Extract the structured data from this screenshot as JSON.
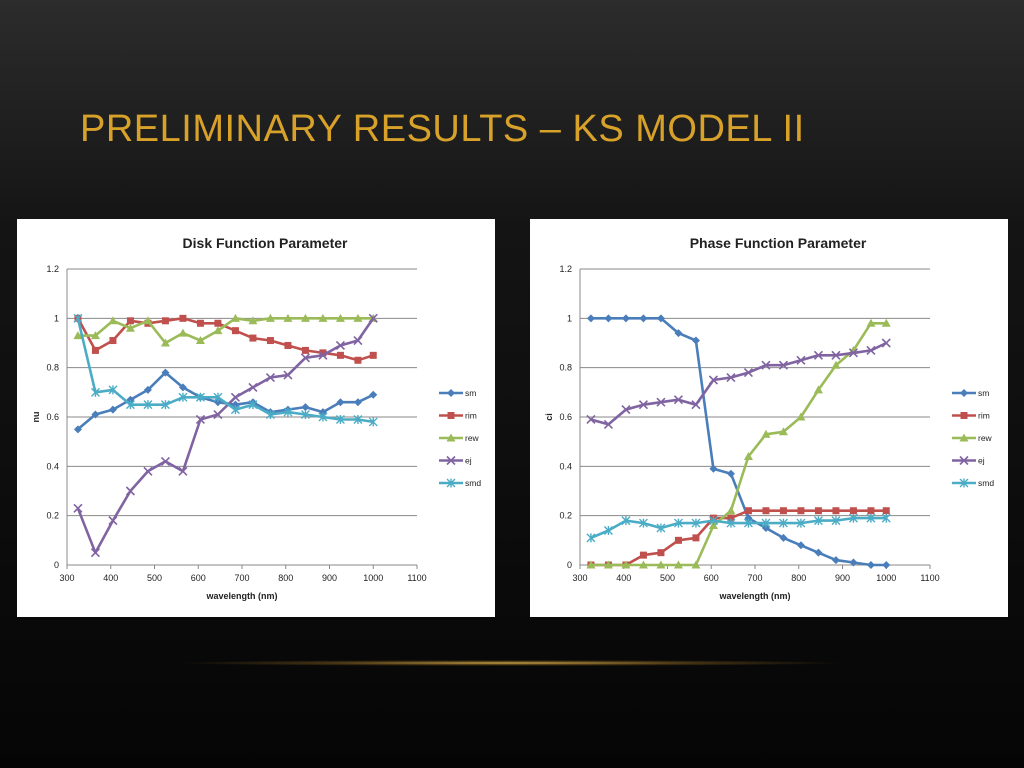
{
  "slide": {
    "title": "PRELIMINARY RESULTS – KS MODEL II"
  },
  "chart_data": [
    {
      "type": "line",
      "title": "Disk Function Parameter",
      "xlabel": "wavelength (nm)",
      "ylabel": "nu",
      "xlim": [
        300,
        1100
      ],
      "ylim": [
        0,
        1.2
      ],
      "xticks": [
        300,
        400,
        500,
        600,
        700,
        800,
        900,
        1000,
        1100
      ],
      "yticks": [
        0,
        0.2,
        0.4,
        0.6,
        0.8,
        1,
        1.2
      ],
      "grid": "horizontal",
      "legend": "right",
      "x": [
        325,
        365,
        405,
        445,
        485,
        525,
        565,
        605,
        645,
        685,
        725,
        765,
        805,
        845,
        885,
        925,
        965,
        1000
      ],
      "series": [
        {
          "name": "sm",
          "color": "#4a7ebb",
          "marker": "diamond",
          "values": [
            0.55,
            0.61,
            0.63,
            0.67,
            0.71,
            0.78,
            0.72,
            0.68,
            0.66,
            0.65,
            0.66,
            0.62,
            0.63,
            0.64,
            0.62,
            0.66,
            0.66,
            0.69
          ]
        },
        {
          "name": "rim",
          "color": "#c0504d",
          "marker": "square",
          "values": [
            1.0,
            0.87,
            0.91,
            0.99,
            0.98,
            0.99,
            1.0,
            0.98,
            0.98,
            0.95,
            0.92,
            0.91,
            0.89,
            0.87,
            0.86,
            0.85,
            0.83,
            0.85
          ]
        },
        {
          "name": "rew",
          "color": "#9bbb59",
          "marker": "triangle",
          "values": [
            0.93,
            0.93,
            0.99,
            0.96,
            0.99,
            0.9,
            0.94,
            0.91,
            0.95,
            1.0,
            0.99,
            1.0,
            1.0,
            1.0,
            1.0,
            1.0,
            1.0,
            1.0
          ]
        },
        {
          "name": "ej",
          "color": "#8064a2",
          "marker": "x",
          "values": [
            0.23,
            0.05,
            0.18,
            0.3,
            0.38,
            0.42,
            0.38,
            0.59,
            0.61,
            0.68,
            0.72,
            0.76,
            0.77,
            0.84,
            0.85,
            0.89,
            0.91,
            1.0
          ]
        },
        {
          "name": "smd",
          "color": "#4bacc6",
          "marker": "star",
          "values": [
            1.0,
            0.7,
            0.71,
            0.65,
            0.65,
            0.65,
            0.68,
            0.68,
            0.68,
            0.63,
            0.65,
            0.61,
            0.62,
            0.61,
            0.6,
            0.59,
            0.59,
            0.58
          ]
        }
      ]
    },
    {
      "type": "line",
      "title": "Phase Function Parameter",
      "xlabel": "wavelength (nm)",
      "ylabel": "ci",
      "xlim": [
        300,
        1100
      ],
      "ylim": [
        0,
        1.2
      ],
      "xticks": [
        300,
        400,
        500,
        600,
        700,
        800,
        900,
        1000,
        1100
      ],
      "yticks": [
        0,
        0.2,
        0.4,
        0.6,
        0.8,
        1,
        1.2
      ],
      "grid": "horizontal",
      "legend": "right",
      "x": [
        325,
        365,
        405,
        445,
        485,
        525,
        565,
        605,
        645,
        685,
        725,
        765,
        805,
        845,
        885,
        925,
        965,
        1000
      ],
      "series": [
        {
          "name": "sm",
          "color": "#4a7ebb",
          "marker": "diamond",
          "values": [
            1.0,
            1.0,
            1.0,
            1.0,
            1.0,
            0.94,
            0.91,
            0.39,
            0.37,
            0.19,
            0.15,
            0.11,
            0.08,
            0.05,
            0.02,
            0.01,
            0.0,
            0.0
          ]
        },
        {
          "name": "rim",
          "color": "#c0504d",
          "marker": "square",
          "values": [
            0.0,
            0.0,
            0.0,
            0.04,
            0.05,
            0.1,
            0.11,
            0.19,
            0.19,
            0.22,
            0.22,
            0.22,
            0.22,
            0.22,
            0.22,
            0.22,
            0.22,
            0.22
          ]
        },
        {
          "name": "rew",
          "color": "#9bbb59",
          "marker": "triangle",
          "values": [
            0.0,
            0.0,
            0.0,
            0.0,
            0.0,
            0.0,
            0.0,
            0.16,
            0.22,
            0.44,
            0.53,
            0.54,
            0.6,
            0.71,
            0.81,
            0.87,
            0.98,
            0.98
          ]
        },
        {
          "name": "ej",
          "color": "#8064a2",
          "marker": "x",
          "values": [
            0.59,
            0.57,
            0.63,
            0.65,
            0.66,
            0.67,
            0.65,
            0.75,
            0.76,
            0.78,
            0.81,
            0.81,
            0.83,
            0.85,
            0.85,
            0.86,
            0.87,
            0.9
          ]
        },
        {
          "name": "smd",
          "color": "#4bacc6",
          "marker": "star",
          "values": [
            0.11,
            0.14,
            0.18,
            0.17,
            0.15,
            0.17,
            0.17,
            0.18,
            0.17,
            0.17,
            0.17,
            0.17,
            0.17,
            0.18,
            0.18,
            0.19,
            0.19,
            0.19
          ]
        }
      ]
    }
  ]
}
